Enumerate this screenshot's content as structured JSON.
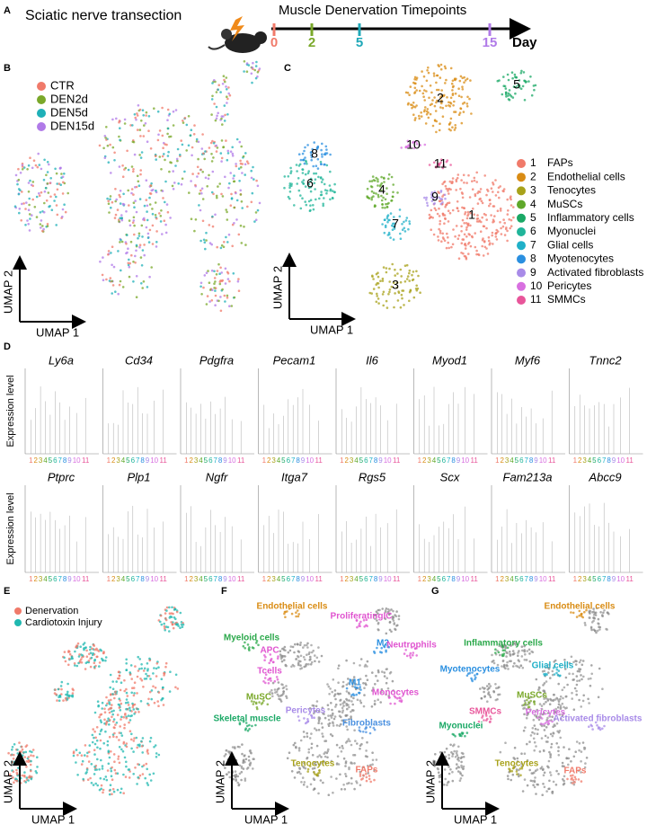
{
  "panel_a": {
    "label": "A",
    "procedure": "Sciatic nerve transection",
    "timeline_title": "Muscle Denervation Timepoints",
    "timepoints": [
      {
        "text": "0",
        "color": "#f07a6a"
      },
      {
        "text": "2",
        "color": "#7aa82a"
      },
      {
        "text": "5",
        "color": "#1fa8b8"
      },
      {
        "text": "15",
        "color": "#b07ae8"
      }
    ],
    "unit": "Day"
  },
  "panel_b": {
    "label": "B",
    "legend": [
      {
        "name": "CTR",
        "color": "#f07a6a"
      },
      {
        "name": "DEN2d",
        "color": "#7aa82a"
      },
      {
        "name": "DEN5d",
        "color": "#1fb0b8"
      },
      {
        "name": "DEN15d",
        "color": "#b07ae8"
      }
    ],
    "x_axis": "UMAP 1",
    "y_axis": "UMAP 2"
  },
  "panel_c": {
    "label": "C",
    "x_axis": "UMAP 1",
    "y_axis": "UMAP 2",
    "clusters": [
      {
        "id": "1",
        "name": "FAPs",
        "color": "#f07a6a"
      },
      {
        "id": "2",
        "name": "Endothelial cells",
        "color": "#d98c14"
      },
      {
        "id": "3",
        "name": "Tenocytes",
        "color": "#a8a21a"
      },
      {
        "id": "4",
        "name": "MuSCs",
        "color": "#5fa82a"
      },
      {
        "id": "5",
        "name": "Inflammatory cells",
        "color": "#1aa865"
      },
      {
        "id": "6",
        "name": "Myonuclei",
        "color": "#20b59a"
      },
      {
        "id": "7",
        "name": "Glial cells",
        "color": "#1fb0c8"
      },
      {
        "id": "8",
        "name": "Myotenocytes",
        "color": "#2a8fe0"
      },
      {
        "id": "9",
        "name": "Activated fibroblasts",
        "color": "#a88be8"
      },
      {
        "id": "10",
        "name": "Pericytes",
        "color": "#d870e0"
      },
      {
        "id": "11",
        "name": "SMMCs",
        "color": "#e8559a"
      }
    ]
  },
  "panel_d": {
    "label": "D",
    "y_axis": "Expression level",
    "row1_genes": [
      "Ly6a",
      "Cd34",
      "Pdgfra",
      "Pecam1",
      "Il6",
      "Myod1",
      "Myf6",
      "Tnnc2"
    ],
    "row2_genes": [
      "Ptprc",
      "Plp1",
      "Ngfr",
      "Itga7",
      "Rgs5",
      "Scx",
      "Fam213a",
      "Abcc9"
    ]
  },
  "panel_e": {
    "label": "E",
    "legend": [
      {
        "name": "Denervation",
        "color": "#f07a6a"
      },
      {
        "name": "Cardiotoxin Injury",
        "color": "#20b8b0"
      }
    ],
    "x_axis": "UMAP 1",
    "y_axis": "UMAP 2"
  },
  "panel_f": {
    "label": "F",
    "x_axis": "UMAP 1",
    "y_axis": "UMAP 2",
    "labels": [
      {
        "text": "Endothelial cells",
        "color": "#d98c14"
      },
      {
        "text": "ProliferatingIC",
        "color": "#e055d0"
      },
      {
        "text": "Myeloid cells",
        "color": "#2aa84a"
      },
      {
        "text": "M2",
        "color": "#2a8fe0"
      },
      {
        "text": "Neutrophils",
        "color": "#e055d0"
      },
      {
        "text": "APC",
        "color": "#e055d0"
      },
      {
        "text": "Tcells",
        "color": "#e055d0"
      },
      {
        "text": "M1",
        "color": "#2a8fe0"
      },
      {
        "text": "Monocytes",
        "color": "#e055d0"
      },
      {
        "text": "MuSC",
        "color": "#7aa82a"
      },
      {
        "text": "Pericytes",
        "color": "#a88be8"
      },
      {
        "text": "Skeletal muscle",
        "color": "#1aa865"
      },
      {
        "text": "Fibroblasts",
        "color": "#4a90e0"
      },
      {
        "text": "Tenocytes",
        "color": "#a8a21a"
      },
      {
        "text": "FAPs",
        "color": "#f07a6a"
      }
    ]
  },
  "panel_g": {
    "label": "G",
    "x_axis": "UMAP 1",
    "y_axis": "UMAP 2",
    "labels": [
      {
        "text": "Endothelial cells",
        "color": "#d98c14"
      },
      {
        "text": "Inflammatory cells",
        "color": "#2aa84a"
      },
      {
        "text": "Myotenocytes",
        "color": "#2a8fe0"
      },
      {
        "text": "Glial cells",
        "color": "#1fb0c8"
      },
      {
        "text": "MuSCs",
        "color": "#7aa82a"
      },
      {
        "text": "SMMCs",
        "color": "#e8559a"
      },
      {
        "text": "Pericytes",
        "color": "#d870e0"
      },
      {
        "text": "Activated fibroblasts",
        "color": "#a88be8"
      },
      {
        "text": "Myonuclei",
        "color": "#1aa865"
      },
      {
        "text": "Tenocytes",
        "color": "#a8a21a"
      },
      {
        "text": "FAPs",
        "color": "#f07a6a"
      }
    ]
  }
}
